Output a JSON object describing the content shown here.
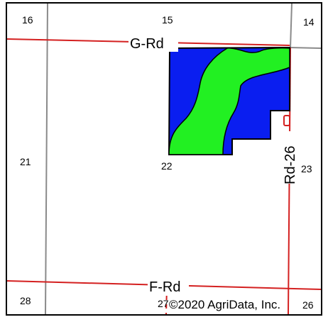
{
  "map": {
    "sections": {
      "s14": "14",
      "s15": "15",
      "s16": "16",
      "s21": "21",
      "s22": "22",
      "s23": "23",
      "s26": "26",
      "s27": "27",
      "s28": "28"
    },
    "roads": {
      "g_rd": "G-Rd",
      "f_rd": "F-Rd",
      "rd_26": "Rd-26"
    },
    "copyright": "©2020 AgriData, Inc.",
    "colors": {
      "road": "#d42020",
      "section_line": "#8a8a8a",
      "field_blue": "#0a1ef0",
      "field_green": "#22f022",
      "boundary": "#000000"
    }
  }
}
